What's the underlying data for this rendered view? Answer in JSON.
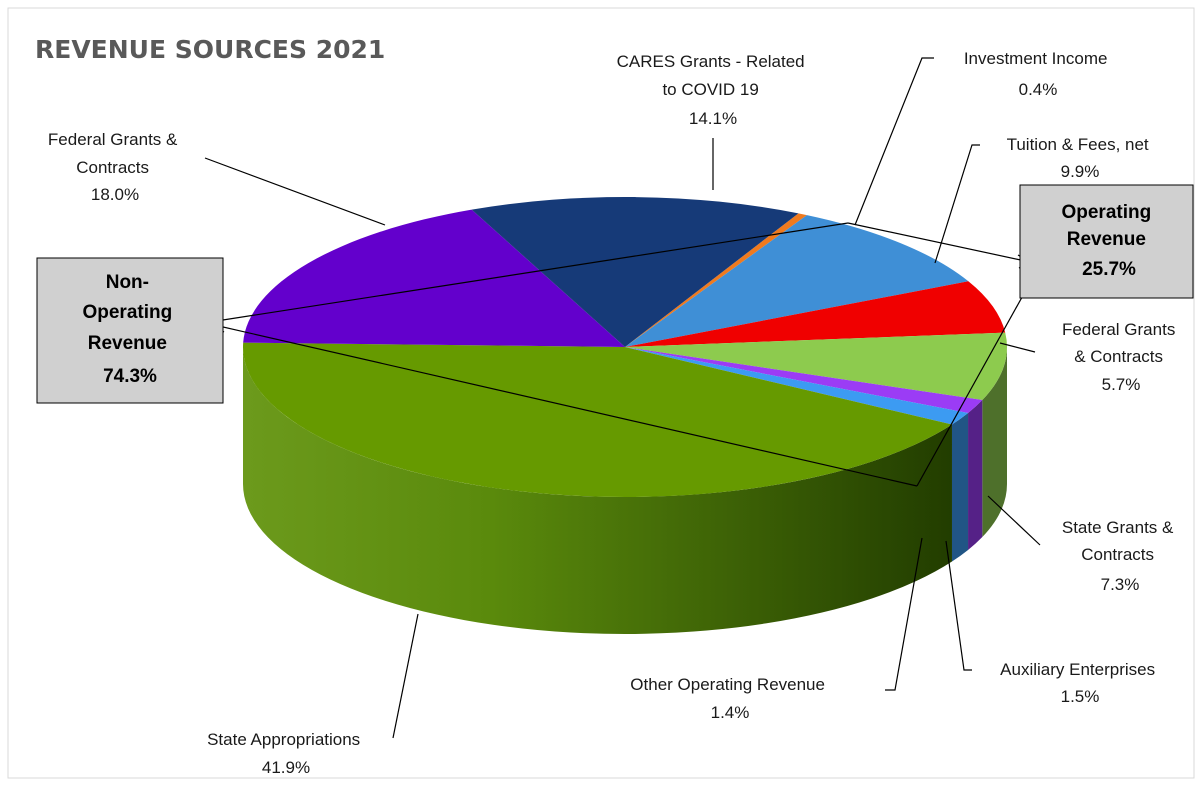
{
  "chart_data": {
    "type": "pie",
    "title": "REVENUE SOURCES 2021",
    "slices": [
      {
        "label": "Investment Income",
        "value": 0.4,
        "display": "0.4%",
        "color": "#F07A1E",
        "key": "investment-income"
      },
      {
        "label": "Tuition & Fees, net",
        "value": 9.9,
        "display": "9.9%",
        "color": "#3F8FD6",
        "key": "tuition-fees"
      },
      {
        "label": "Federal Grants & Contracts",
        "value": 5.7,
        "display": "5.7%",
        "color": "#F00000",
        "key": "federal-grants-operating"
      },
      {
        "label": "State Grants & Contracts",
        "value": 7.3,
        "display": "7.3%",
        "color": "#8DCB4E",
        "key": "state-grants"
      },
      {
        "label": "Auxiliary Enterprises",
        "value": 1.5,
        "display": "1.5%",
        "color": "#9B3CF5",
        "key": "auxiliary-enterprises"
      },
      {
        "label": "Other Operating Revenue",
        "value": 1.4,
        "display": "1.4%",
        "color": "#3C9BF2",
        "key": "other-operating"
      },
      {
        "label": "State Appropriations",
        "value": 41.9,
        "display": "41.9%",
        "color": "#669A00",
        "key": "state-appropriations"
      },
      {
        "label": "Federal Grants & Contracts",
        "value": 18.0,
        "display": "18.0%",
        "color": "#6300CC",
        "key": "federal-grants-nonoperating"
      },
      {
        "label": "CARES Grants - Related to COVID 19",
        "value": 14.1,
        "display": "14.1%",
        "color": "#163A78",
        "key": "cares-grants"
      }
    ],
    "groups": [
      {
        "label": "Operating Revenue",
        "value": 25.7,
        "display": "25.7%"
      },
      {
        "label": "Non-Operating Revenue",
        "value": 74.3,
        "display": "74.3%"
      }
    ]
  },
  "labels": {
    "investment": [
      "Investment Income",
      "0.4%"
    ],
    "tuition": [
      "Tuition & Fees, net",
      "9.9%"
    ],
    "fedop": [
      "Federal Grants",
      "& Contracts",
      "5.7%"
    ],
    "state_grants": [
      "State Grants &",
      "Contracts",
      "7.3%"
    ],
    "aux": [
      "Auxiliary Enterprises",
      "1.5%"
    ],
    "other": [
      "Other Operating Revenue",
      "1.4%"
    ],
    "state_app": [
      "State Appropriations",
      "41.9%"
    ],
    "fednon": [
      "Federal Grants &",
      "Contracts",
      "18.0%"
    ],
    "cares": [
      "CARES Grants - Related",
      "to COVID 19",
      "14.1%"
    ],
    "op_box": [
      "Operating",
      "Revenue",
      "25.7%"
    ],
    "nonop_box": [
      "Non-",
      "Operating",
      "Revenue",
      "74.3%"
    ]
  }
}
